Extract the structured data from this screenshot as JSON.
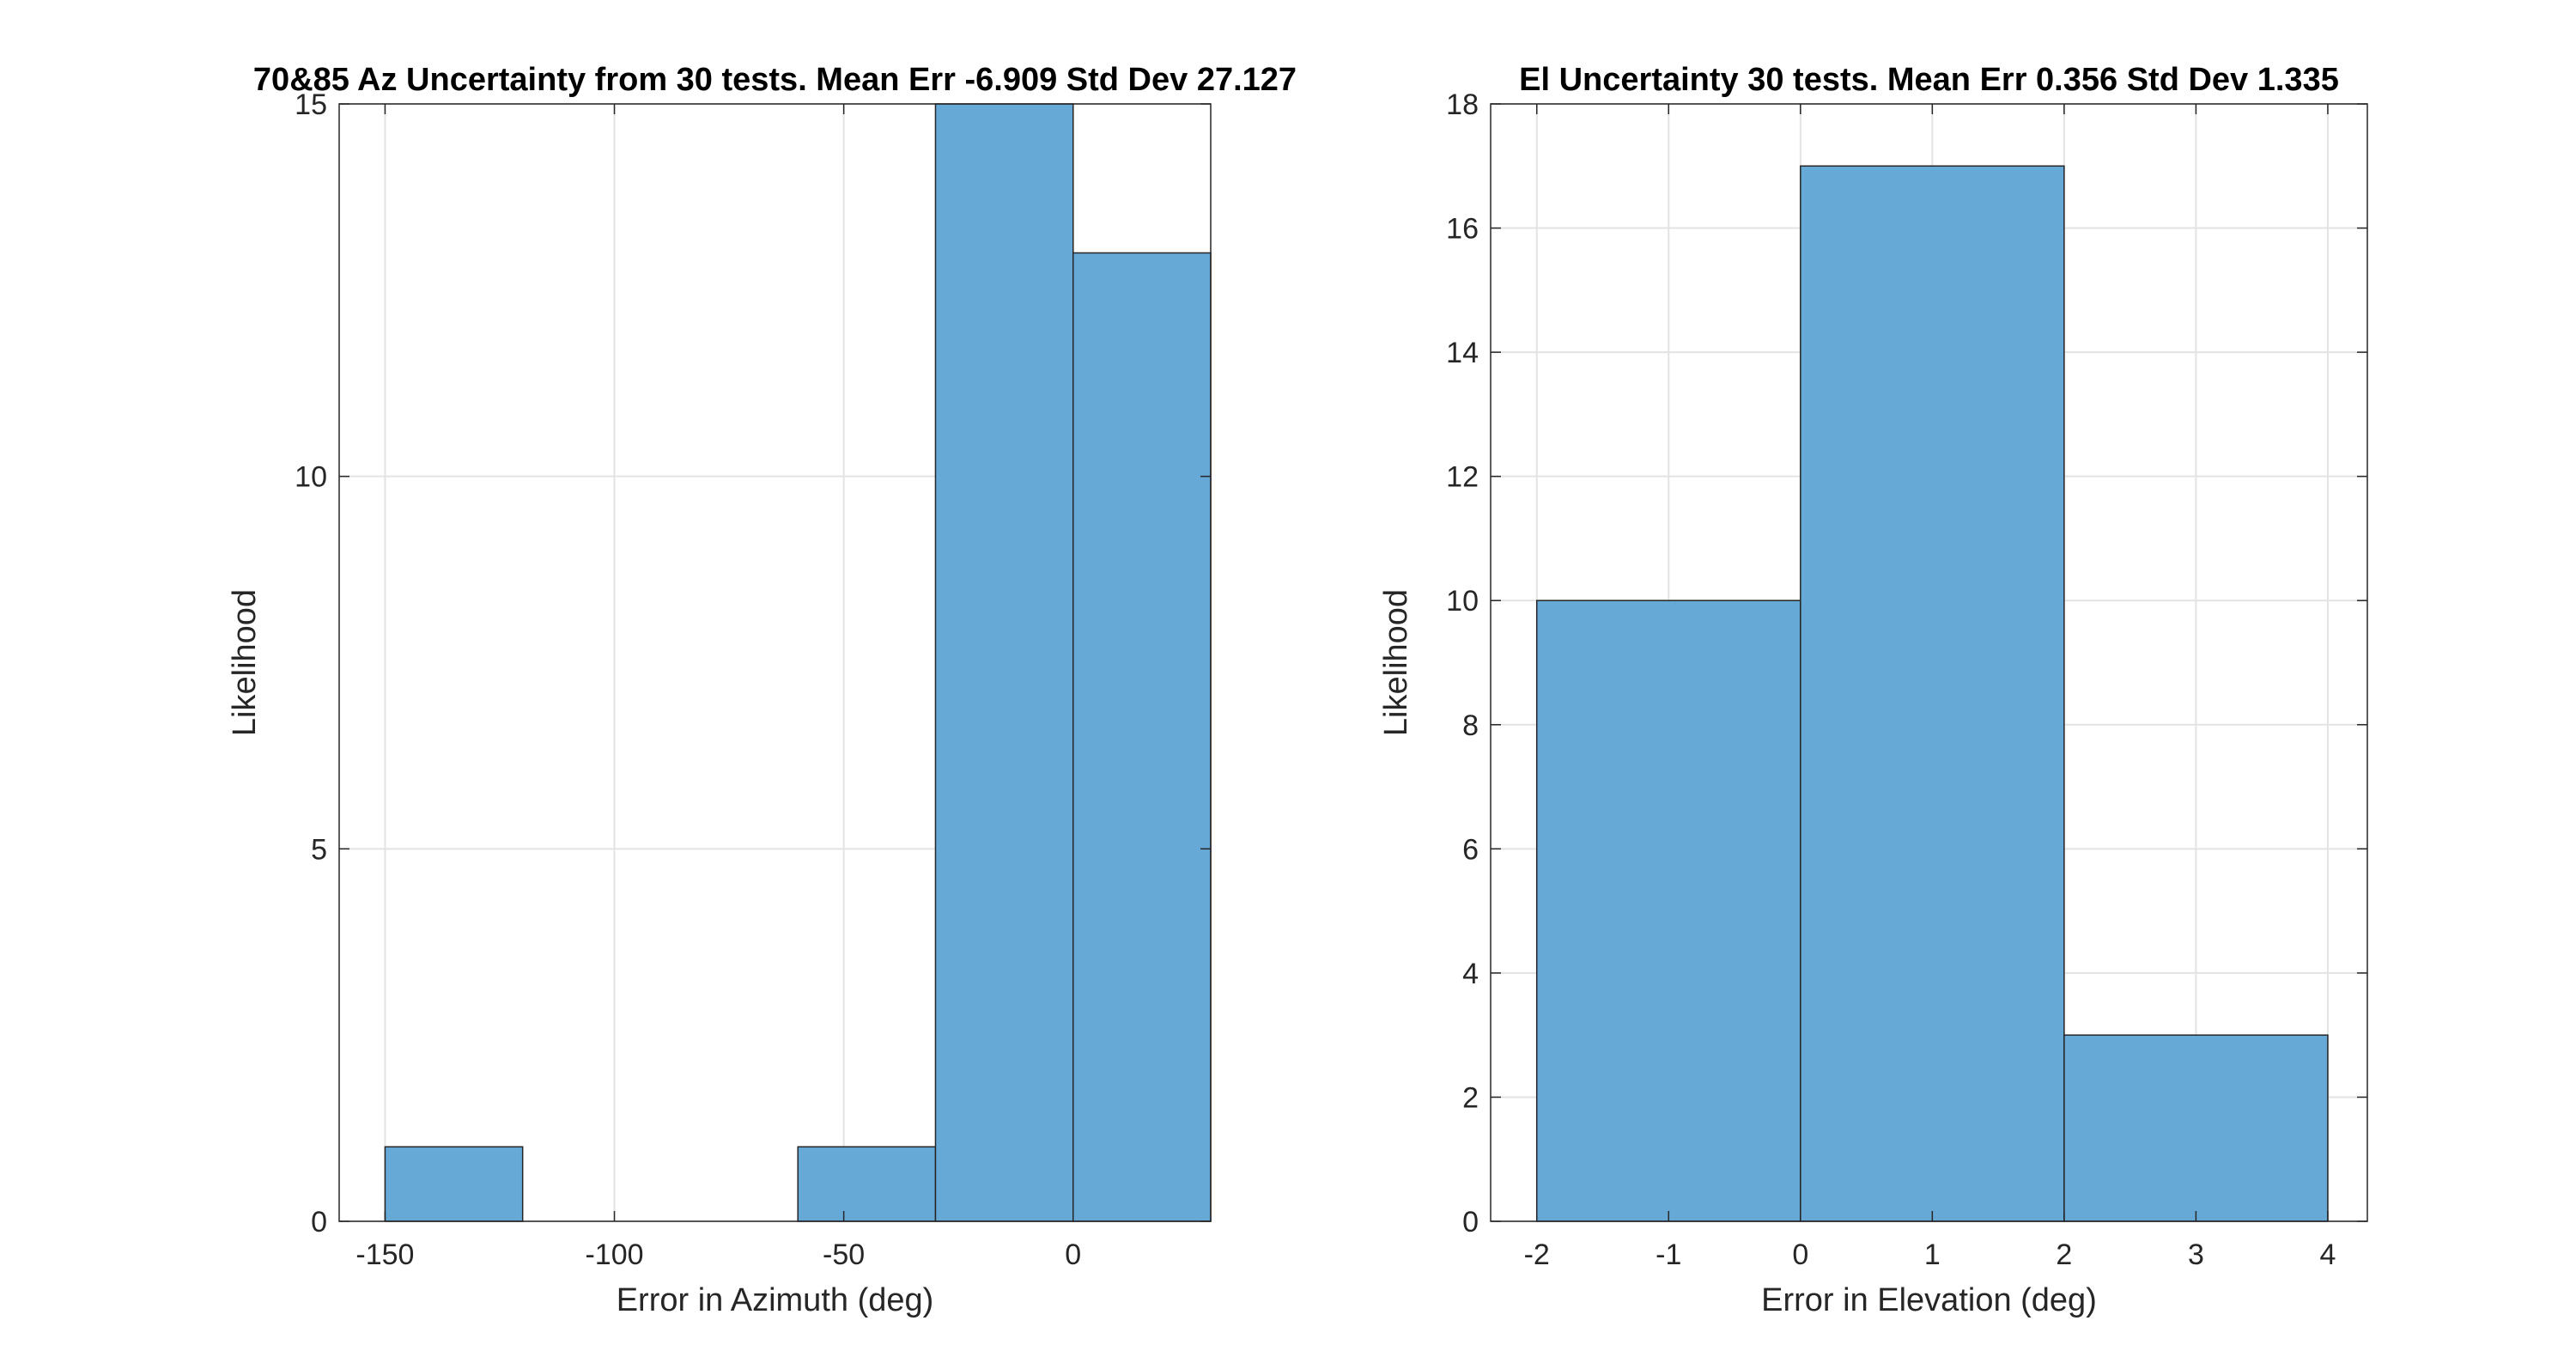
{
  "chart_data": [
    {
      "type": "bar",
      "title": "70&85 Az Uncertainty from 30 tests. Mean Err -6.909 Std Dev 27.127",
      "xlabel": "Error in Azimuth (deg)",
      "ylabel": "Likelihood",
      "xlim": [
        -160,
        30
      ],
      "ylim": [
        0,
        15
      ],
      "xticks": [
        -150,
        -100,
        -50,
        0
      ],
      "yticks": [
        0,
        5,
        10,
        15
      ],
      "grid": true,
      "bar_color": "#66a8d6",
      "bins": [
        {
          "x0": -150,
          "x1": -120,
          "value": 1
        },
        {
          "x0": -120,
          "x1": -90,
          "value": 0
        },
        {
          "x0": -90,
          "x1": -60,
          "value": 0
        },
        {
          "x0": -60,
          "x1": -30,
          "value": 1
        },
        {
          "x0": -30,
          "x1": 0,
          "value": 15
        },
        {
          "x0": 0,
          "x1": 30,
          "value": 13
        }
      ]
    },
    {
      "type": "bar",
      "title": "El Uncertainty 30 tests. Mean Err 0.356 Std Dev 1.335",
      "xlabel": "Error in Elevation (deg)",
      "ylabel": "Likelihood",
      "xlim": [
        -2.35,
        4.3
      ],
      "ylim": [
        0,
        18
      ],
      "xticks": [
        -2,
        -1,
        0,
        1,
        2,
        3,
        4
      ],
      "yticks": [
        0,
        2,
        4,
        6,
        8,
        10,
        12,
        14,
        16,
        18
      ],
      "grid": true,
      "bar_color": "#66a8d6",
      "bins": [
        {
          "x0": -2,
          "x1": 0,
          "value": 10
        },
        {
          "x0": 0,
          "x1": 2,
          "value": 17
        },
        {
          "x0": 2,
          "x1": 4,
          "value": 3
        }
      ]
    }
  ]
}
